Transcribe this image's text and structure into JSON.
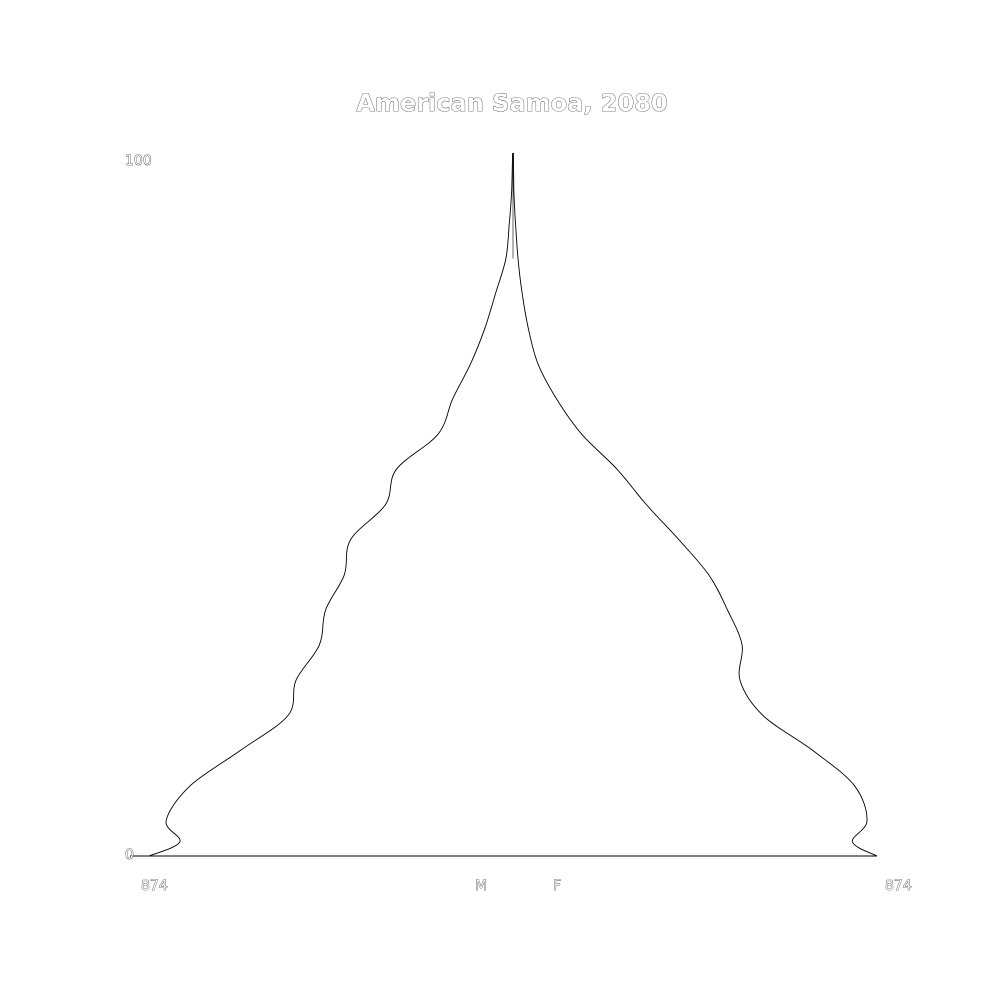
{
  "chart_data": {
    "type": "area",
    "title": "American Samoa, 2080",
    "y_ticks": [
      "0",
      "100"
    ],
    "ylim": [
      0,
      100
    ],
    "x_left_label": "874",
    "x_right_label": "874",
    "male_label": "M",
    "female_label": "F",
    "xmax": 874,
    "age_groups": [
      0,
      2,
      5,
      10,
      15,
      20,
      25,
      30,
      35,
      40,
      45,
      50,
      55,
      60,
      65,
      70,
      75,
      80,
      85,
      90,
      92,
      95,
      100
    ],
    "male": [
      874,
      800,
      833,
      775,
      655,
      540,
      521,
      465,
      450,
      405,
      390,
      306,
      280,
      180,
      145,
      102,
      68,
      42,
      17,
      9,
      6,
      3,
      1
    ],
    "female": [
      874,
      815,
      850,
      820,
      720,
      600,
      545,
      550,
      515,
      470,
      398,
      320,
      250,
      165,
      105,
      60,
      37,
      22,
      12,
      6,
      4,
      2,
      1
    ]
  }
}
